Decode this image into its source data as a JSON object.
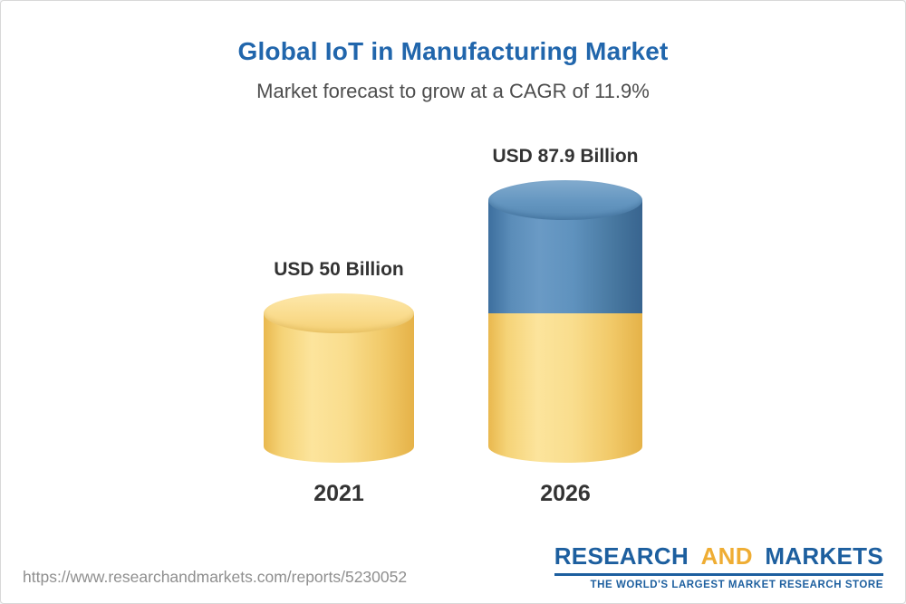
{
  "header": {
    "title": "Global IoT in Manufacturing Market",
    "subtitle": "Market forecast to grow at a CAGR of 11.9%"
  },
  "chart_data": {
    "type": "bar",
    "categories": [
      "2021",
      "2026"
    ],
    "values": [
      50,
      87.9
    ],
    "value_labels": [
      "USD 50 Billion",
      "USD 87.9 Billion"
    ],
    "unit": "USD Billion",
    "title": "Global IoT in Manufacturing Market",
    "subtitle": "Market forecast to grow at a CAGR of 11.9%",
    "cagr_percent": 11.9,
    "ylim": [
      0,
      100
    ],
    "grid": false,
    "legend_position": "none",
    "bar_style": "3d-cylinder",
    "colors": {
      "base_segment": "#f6d47a",
      "growth_segment": "#4a7da9",
      "title_blue": "#2166ac",
      "label_dark": "#333333"
    }
  },
  "footer": {
    "url": "https://www.researchandmarkets.com/reports/5230052",
    "logo": {
      "research": "RESEARCH",
      "and": "AND",
      "markets": "MARKETS",
      "tagline": "THE WORLD'S LARGEST MARKET RESEARCH STORE",
      "blue": "#1d5f9f",
      "gold": "#efad33"
    }
  }
}
